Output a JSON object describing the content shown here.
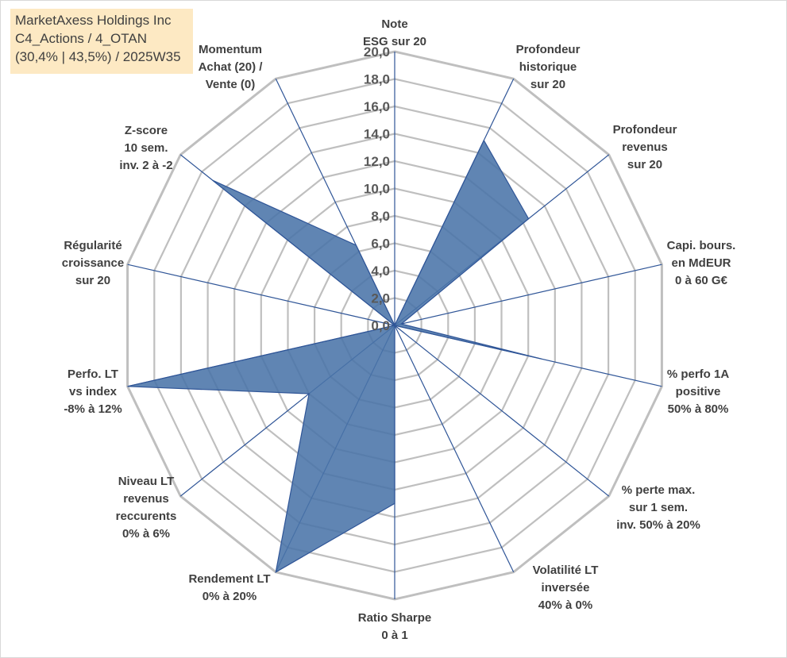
{
  "title_box": {
    "line1": "MarketAxess Holdings Inc",
    "line2": "C4_Actions / 4_OTAN",
    "line3": "(30,4% | 43,5%) / 2025W35"
  },
  "colors": {
    "grid": "#bfbfbf",
    "spoke": "#2f5597",
    "fill": "#4a74a8",
    "stroke": "#2f5597"
  },
  "chart_data": {
    "type": "radar",
    "title": "",
    "rlim": [
      0,
      20
    ],
    "tick_labels": [
      "0,0",
      "2,0",
      "4,0",
      "6,0",
      "8,0",
      "10,0",
      "12,0",
      "14,0",
      "16,0",
      "18,0",
      "20,0"
    ],
    "grid": true,
    "axes": [
      {
        "label": [
          "Note",
          "ESG sur 20"
        ],
        "value": 0
      },
      {
        "label": [
          "Profondeur",
          "historique",
          "sur 20"
        ],
        "value": 15.0
      },
      {
        "label": [
          "Profondeur",
          "revenus",
          "sur 20"
        ],
        "value": 12.5
      },
      {
        "label": [
          "Capi. bours.",
          "en MdEUR",
          "0 à 60 G€"
        ],
        "value": 0.5
      },
      {
        "label": [
          "% perfo 1A",
          "positive",
          "50% à 80%"
        ],
        "value": 11.0
      },
      {
        "label": [
          "% perte max.",
          "sur 1 sem.",
          "inv. 50% à 20%"
        ],
        "value": 0
      },
      {
        "label": [
          "Volatilité LT",
          "inversée",
          "40% à 0%"
        ],
        "value": 0
      },
      {
        "label": [
          "Ratio Sharpe",
          "0 à 1"
        ],
        "value": 13.0
      },
      {
        "label": [
          "Rendement LT",
          "0% à 20%"
        ],
        "value": 20.0
      },
      {
        "label": [
          "Niveau LT",
          "revenus",
          "reccurents",
          "0% à 6%"
        ],
        "value": 8.0
      },
      {
        "label": [
          "Perfo. LT",
          "vs index",
          "-8% à 12%"
        ],
        "value": 20.0
      },
      {
        "label": [
          "Régularité",
          "croissance",
          "sur 20"
        ],
        "value": 0
      },
      {
        "label": [
          "Z-score",
          "10 sem.",
          "inv. 2 à -2"
        ],
        "value": 17.0
      },
      {
        "label": [
          "Momentum",
          "Achat (20) /",
          "Vente (0)"
        ],
        "value": 6.5
      }
    ]
  }
}
